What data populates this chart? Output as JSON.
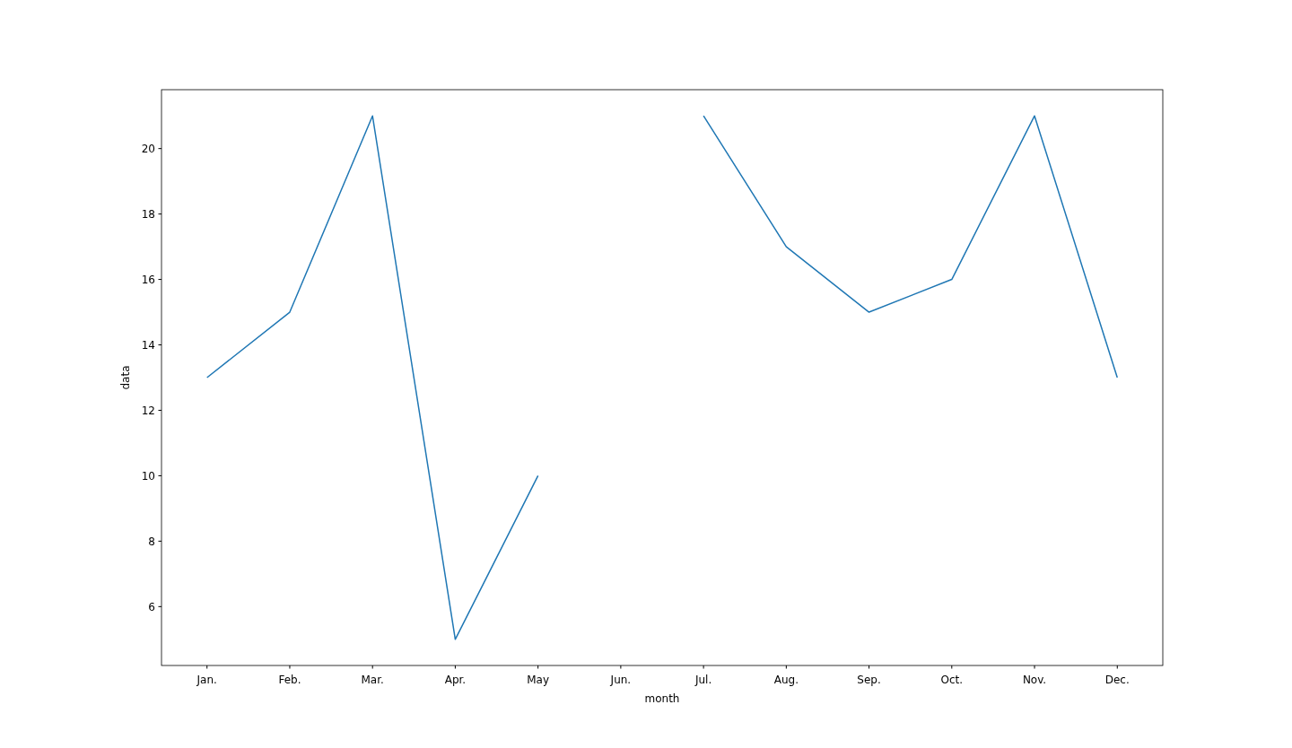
{
  "chart_data": {
    "type": "line",
    "xlabel": "month",
    "ylabel": "data",
    "categories": [
      "Jan.",
      "Feb.",
      "Mar.",
      "Apr.",
      "May",
      "Jun.",
      "Jul.",
      "Aug.",
      "Sep.",
      "Oct.",
      "Nov.",
      "Dec."
    ],
    "series": [
      {
        "color": "#1f77b4",
        "values": [
          13,
          15,
          21,
          5,
          10,
          null,
          21,
          17,
          15,
          16,
          21,
          13
        ]
      }
    ],
    "ylim": [
      4.2,
      21.8
    ],
    "yticks": [
      6,
      8,
      10,
      12,
      14,
      16,
      18,
      20
    ]
  }
}
